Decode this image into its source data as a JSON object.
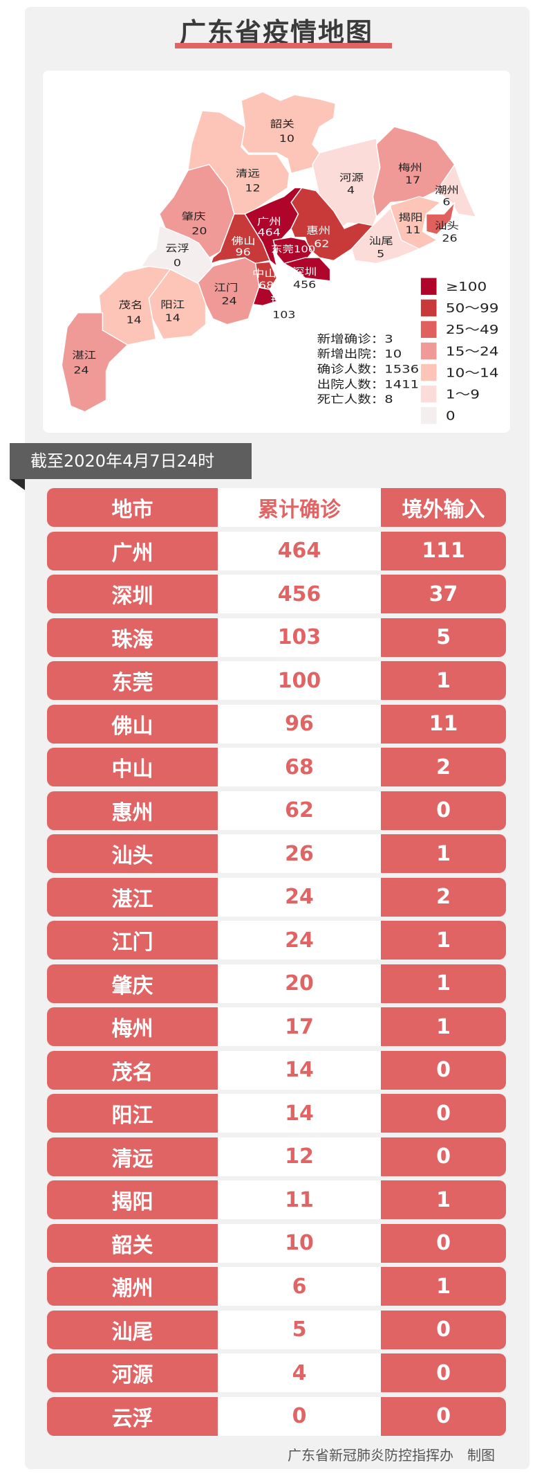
{
  "title": "广东省疫情地图",
  "date_banner": "截至2020年4月7日24时",
  "colors": {
    "accent": "#e06464",
    "banner": "#5e5e5e"
  },
  "map": {
    "regions": [
      {
        "name": "韶关",
        "value": 10
      },
      {
        "name": "清远",
        "value": 12
      },
      {
        "name": "河源",
        "value": 4
      },
      {
        "name": "梅州",
        "value": 17
      },
      {
        "name": "潮州",
        "value": 6
      },
      {
        "name": "揭阳",
        "value": 11
      },
      {
        "name": "汕头",
        "value": 26
      },
      {
        "name": "汕尾",
        "value": 5
      },
      {
        "name": "惠州",
        "value": 62
      },
      {
        "name": "广州",
        "value": 464
      },
      {
        "name": "东莞",
        "value": 100
      },
      {
        "name": "深圳",
        "value": 456
      },
      {
        "name": "佛山",
        "value": 96
      },
      {
        "name": "中山",
        "value": 68
      },
      {
        "name": "珠海",
        "value": 103
      },
      {
        "name": "肇庆",
        "value": 20
      },
      {
        "name": "云浮",
        "value": 0
      },
      {
        "name": "江门",
        "value": 24
      },
      {
        "name": "阳江",
        "value": 14
      },
      {
        "name": "茂名",
        "value": 14
      },
      {
        "name": "湛江",
        "value": 24
      }
    ],
    "legend": [
      {
        "label": "≥100",
        "color": "#b0052a"
      },
      {
        "label": "50～99",
        "color": "#c83a3a"
      },
      {
        "label": "25～49",
        "color": "#e0605e"
      },
      {
        "label": "15～24",
        "color": "#f09a98"
      },
      {
        "label": "10～14",
        "color": "#fcc5b8"
      },
      {
        "label": "1～9",
        "color": "#fcdcd8"
      },
      {
        "label": "0",
        "color": "#f5eeee"
      }
    ],
    "stats": [
      {
        "label": "新增确诊",
        "value": "3"
      },
      {
        "label": "新增出院",
        "value": "10"
      },
      {
        "label": "确诊人数",
        "value": "1536"
      },
      {
        "label": "出院人数",
        "value": "1411"
      },
      {
        "label": "死亡人数",
        "value": "8"
      }
    ]
  },
  "table": {
    "headers": [
      "地市",
      "累计确诊",
      "境外输入"
    ],
    "rows": [
      [
        "广州",
        "464",
        "111"
      ],
      [
        "深圳",
        "456",
        "37"
      ],
      [
        "珠海",
        "103",
        "5"
      ],
      [
        "东莞",
        "100",
        "1"
      ],
      [
        "佛山",
        "96",
        "11"
      ],
      [
        "中山",
        "68",
        "2"
      ],
      [
        "惠州",
        "62",
        "0"
      ],
      [
        "汕头",
        "26",
        "1"
      ],
      [
        "湛江",
        "24",
        "2"
      ],
      [
        "江门",
        "24",
        "1"
      ],
      [
        "肇庆",
        "20",
        "1"
      ],
      [
        "梅州",
        "17",
        "1"
      ],
      [
        "茂名",
        "14",
        "0"
      ],
      [
        "阳江",
        "14",
        "0"
      ],
      [
        "清远",
        "12",
        "0"
      ],
      [
        "揭阳",
        "11",
        "1"
      ],
      [
        "韶关",
        "10",
        "0"
      ],
      [
        "潮州",
        "6",
        "1"
      ],
      [
        "汕尾",
        "5",
        "0"
      ],
      [
        "河源",
        "4",
        "0"
      ],
      [
        "云浮",
        "0",
        "0"
      ]
    ]
  },
  "footer": "广东省新冠肺炎防控指挥办　制图"
}
